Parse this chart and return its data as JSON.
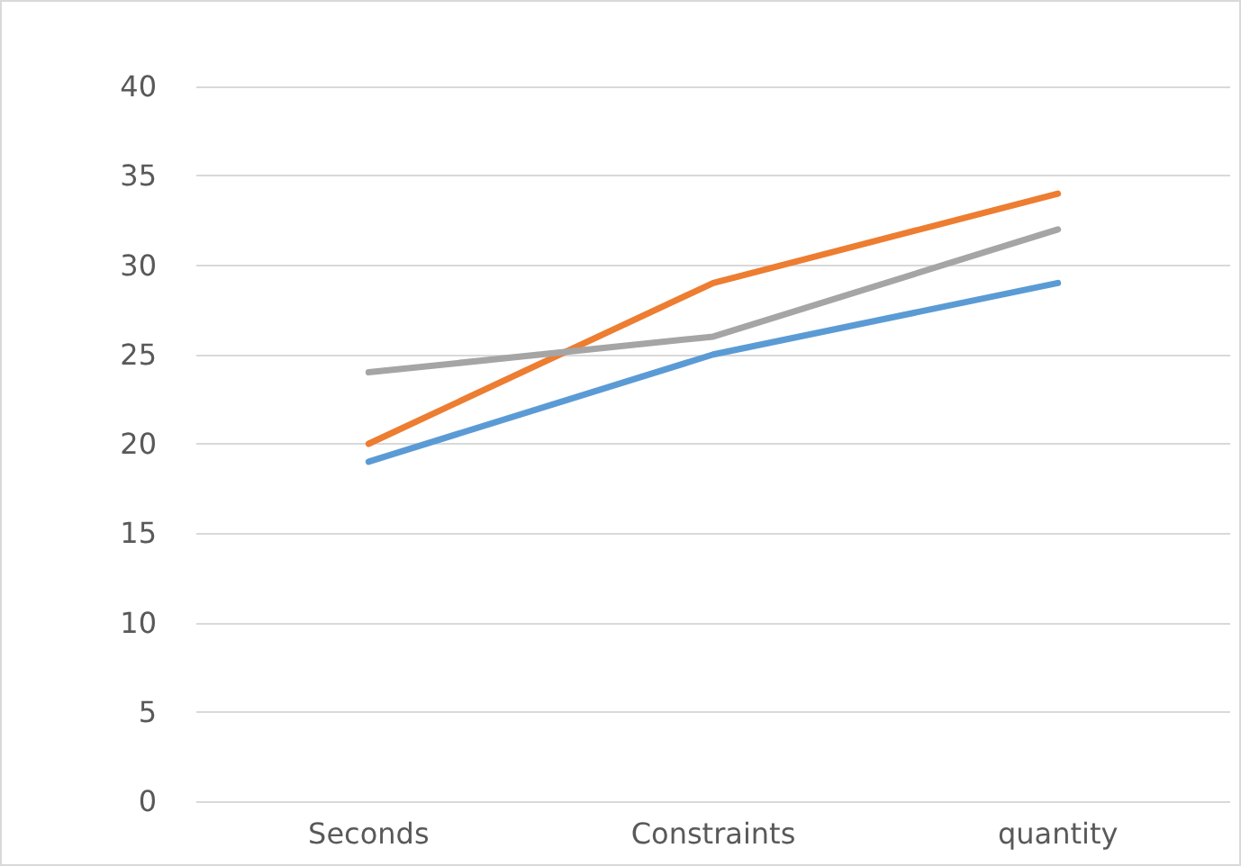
{
  "chart_data": {
    "type": "line",
    "categories": [
      "Seconds",
      "Constraints",
      "quantity"
    ],
    "series": [
      {
        "color": "#5b9bd5",
        "values": [
          19,
          25,
          29
        ]
      },
      {
        "color": "#ed7d31",
        "values": [
          20,
          29,
          34
        ]
      },
      {
        "color": "#a5a5a5",
        "values": [
          24,
          26,
          32
        ]
      }
    ],
    "ylim": [
      0,
      40
    ],
    "yticks": [
      0,
      5,
      10,
      15,
      20,
      25,
      30,
      35,
      40
    ],
    "grid": "y",
    "marker": "none",
    "line_style": "solid"
  }
}
